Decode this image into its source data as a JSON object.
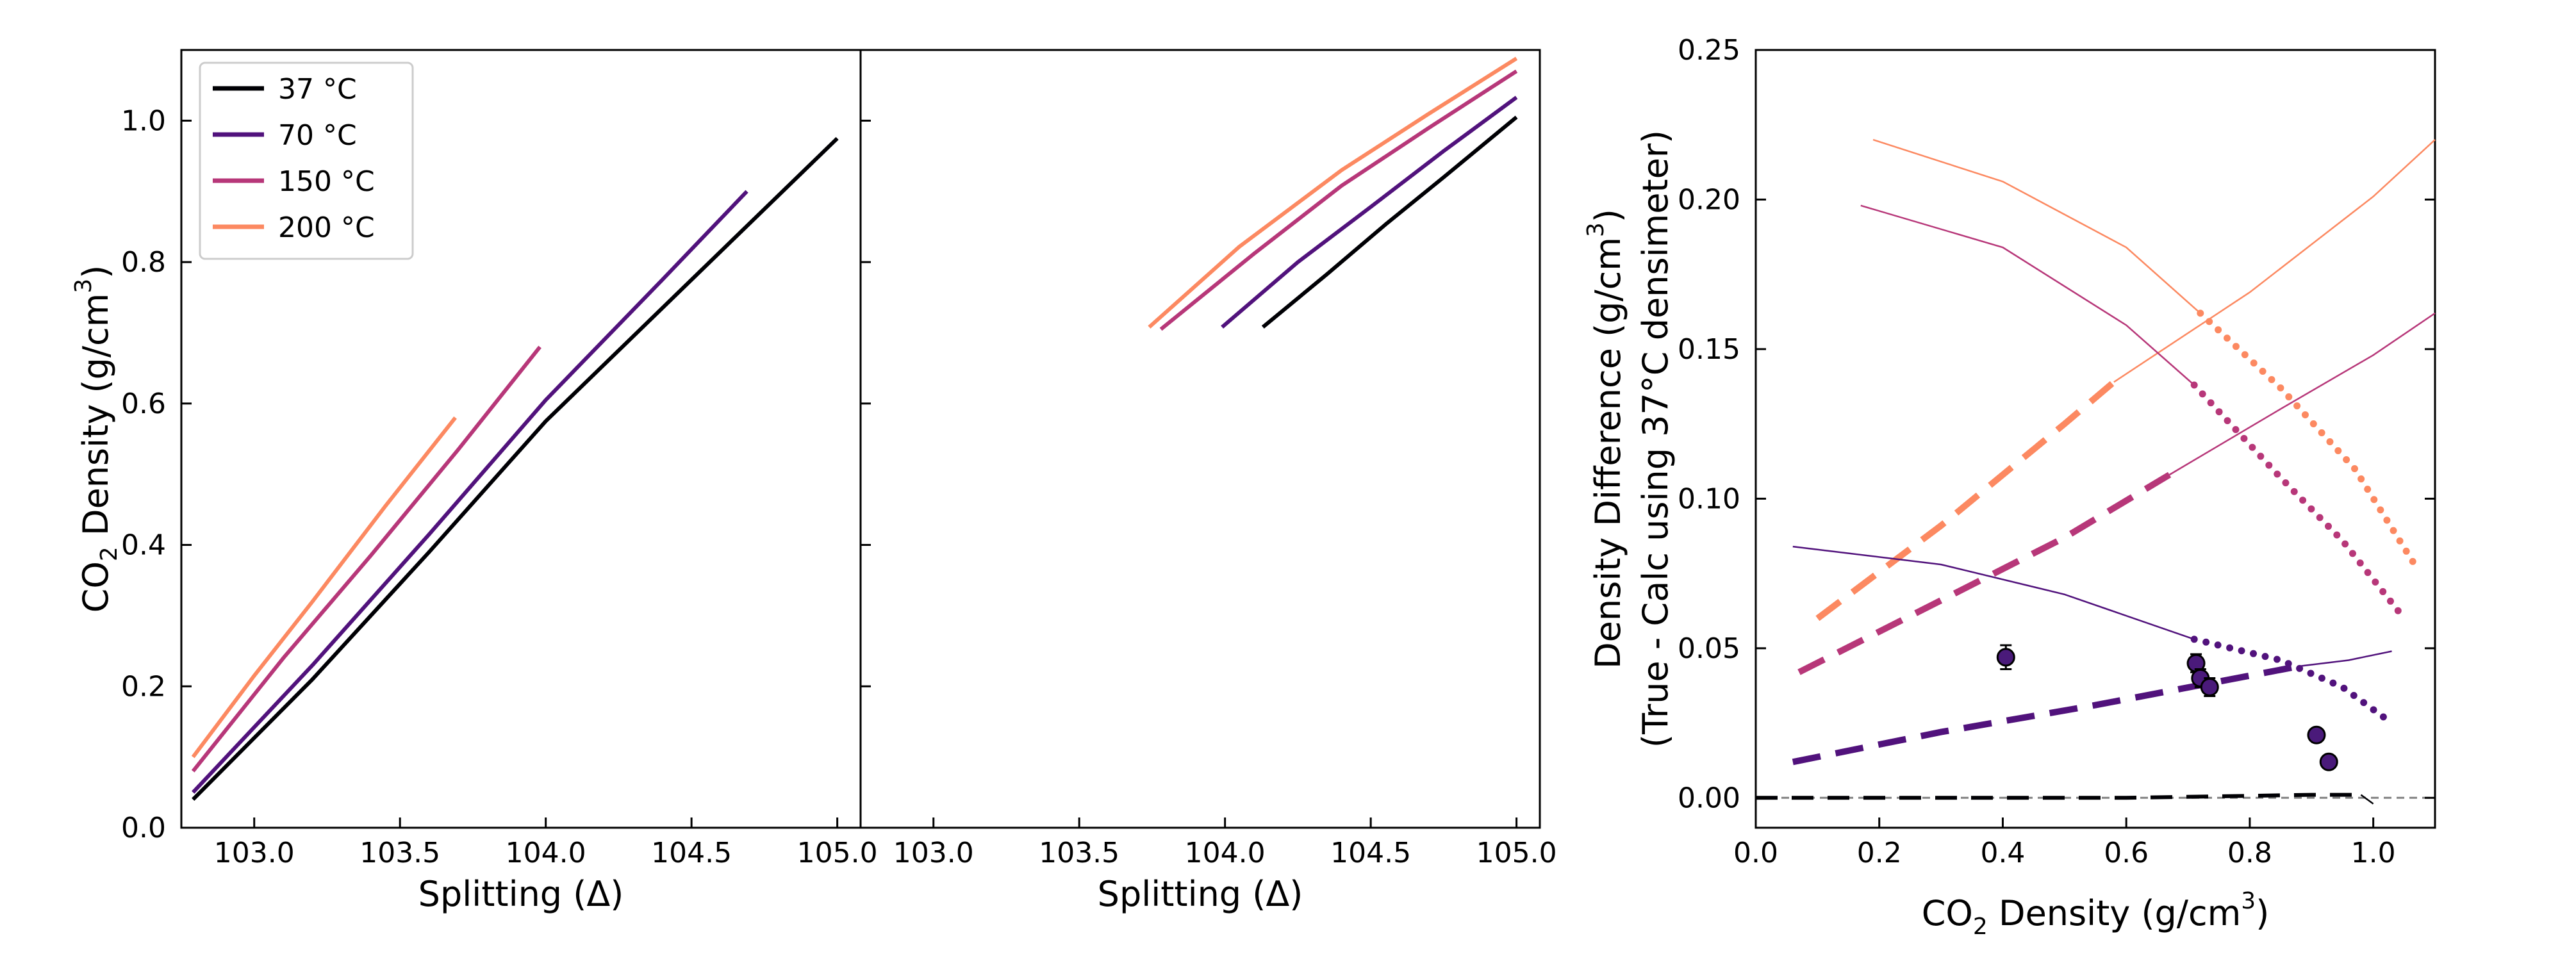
{
  "colors": {
    "37": "#000004",
    "70": "#51127c",
    "150": "#b73779",
    "200": "#fc8961",
    "marker": "#4a1a7a",
    "reference": "#808080"
  },
  "chart_data": [
    {
      "type": "line",
      "panel": "left",
      "xlabel_text": "Splitting (Δ)",
      "ylabel": {
        "pre": "CO",
        "sub": "2",
        "mid": " Density (g/cm",
        "sup": "3",
        "post": ")"
      },
      "xlim": [
        102.75,
        105.08
      ],
      "ylim": [
        0.0,
        1.1
      ],
      "x_ticks": [
        103.0,
        103.5,
        104.0,
        104.5,
        105.0
      ],
      "x_tick_labels": [
        "103.0",
        "103.5",
        "104.0",
        "104.5",
        "105.0"
      ],
      "y_ticks": [
        0.0,
        0.2,
        0.4,
        0.6,
        0.8,
        1.0
      ],
      "y_tick_labels": [
        "0.0",
        "0.2",
        "0.4",
        "0.6",
        "0.8",
        "1.0"
      ],
      "legend": {
        "placement": "top-left",
        "entries": [
          "37 °C",
          "70 °C",
          "150 °C",
          "200 °C"
        ]
      },
      "series": [
        {
          "name": "37 °C",
          "color_key": "37",
          "x": [
            102.79,
            103.2,
            103.6,
            104.0,
            104.5,
            105.0
          ],
          "y": [
            0.04,
            0.21,
            0.39,
            0.575,
            0.775,
            0.975
          ]
        },
        {
          "name": "70 °C",
          "color_key": "70",
          "x": [
            102.79,
            103.2,
            103.6,
            104.0,
            104.4,
            104.69
          ],
          "y": [
            0.05,
            0.23,
            0.415,
            0.605,
            0.775,
            0.9
          ]
        },
        {
          "name": "150 °C",
          "color_key": "150",
          "x": [
            102.79,
            103.1,
            103.4,
            103.7,
            103.98
          ],
          "y": [
            0.08,
            0.24,
            0.385,
            0.535,
            0.68
          ]
        },
        {
          "name": "200 °C",
          "color_key": "200",
          "x": [
            102.79,
            103.0,
            103.2,
            103.45,
            103.69
          ],
          "y": [
            0.1,
            0.215,
            0.32,
            0.455,
            0.58
          ]
        }
      ]
    },
    {
      "type": "line",
      "panel": "middle",
      "xlabel_text": "Splitting (Δ)",
      "xlim": [
        102.75,
        105.08
      ],
      "ylim": [
        0.0,
        1.1
      ],
      "x_ticks": [
        103.0,
        103.5,
        104.0,
        104.5,
        105.0
      ],
      "x_tick_labels": [
        "103.0",
        "103.5",
        "104.0",
        "104.5",
        "105.0"
      ],
      "y_ticks": [
        0.0,
        0.2,
        0.4,
        0.6,
        0.8,
        1.0
      ],
      "series": [
        {
          "color_key": "37",
          "x": [
            104.13,
            104.35,
            104.55,
            104.75,
            105.0
          ],
          "y": [
            0.708,
            0.783,
            0.853,
            0.92,
            1.005
          ]
        },
        {
          "color_key": "70",
          "x": [
            103.99,
            104.25,
            104.5,
            104.75,
            105.0
          ],
          "y": [
            0.708,
            0.8,
            0.878,
            0.957,
            1.033
          ]
        },
        {
          "color_key": "150",
          "x": [
            103.78,
            104.1,
            104.4,
            104.7,
            105.0
          ],
          "y": [
            0.705,
            0.812,
            0.908,
            0.99,
            1.07
          ]
        },
        {
          "color_key": "200",
          "x": [
            103.74,
            104.05,
            104.4,
            104.7,
            105.0
          ],
          "y": [
            0.708,
            0.822,
            0.93,
            1.01,
            1.088
          ]
        }
      ]
    },
    {
      "type": "line",
      "panel": "right",
      "xlabel": {
        "pre": "CO",
        "sub": "2",
        "mid": " Density (g/cm",
        "sup": "3",
        "post": ")"
      },
      "ylabel_line1": {
        "pre": "Density Difference (g/cm",
        "sup": "3",
        "post": ")"
      },
      "ylabel_line2": "(True - Calc using 37°C densimeter)",
      "xlim": [
        0.0,
        1.1
      ],
      "ylim": [
        -0.01,
        0.25
      ],
      "x_ticks": [
        0.0,
        0.2,
        0.4,
        0.6,
        0.8,
        1.0
      ],
      "x_tick_labels": [
        "0.0",
        "0.2",
        "0.4",
        "0.6",
        "0.8",
        "1.0"
      ],
      "y_ticks": [
        0.0,
        0.05,
        0.1,
        0.15,
        0.2,
        0.25
      ],
      "y_tick_labels": [
        "0.00",
        "0.05",
        "0.10",
        "0.15",
        "0.20",
        "0.25"
      ],
      "reference_line_y": 0.0,
      "series": [
        {
          "color_key": "200",
          "style": "thin",
          "x": [
            0.19,
            0.4,
            0.6,
            0.72
          ],
          "y": [
            0.22,
            0.206,
            0.184,
            0.162
          ]
        },
        {
          "color_key": "200",
          "style": "dotted",
          "x": [
            0.72,
            0.85,
            0.97,
            1.07
          ],
          "y": [
            0.162,
            0.137,
            0.11,
            0.077
          ]
        },
        {
          "color_key": "200",
          "style": "dashed",
          "x": [
            0.1,
            0.3,
            0.5,
            0.58
          ],
          "y": [
            0.06,
            0.091,
            0.125,
            0.139
          ]
        },
        {
          "color_key": "200",
          "style": "thin",
          "x": [
            0.58,
            0.8,
            1.0,
            1.1
          ],
          "y": [
            0.139,
            0.169,
            0.201,
            0.22
          ]
        },
        {
          "color_key": "150",
          "style": "thin",
          "x": [
            0.17,
            0.4,
            0.6,
            0.71
          ],
          "y": [
            0.198,
            0.184,
            0.158,
            0.138
          ]
        },
        {
          "color_key": "150",
          "style": "dotted",
          "x": [
            0.71,
            0.85,
            0.95,
            1.05
          ],
          "y": [
            0.138,
            0.107,
            0.086,
            0.06
          ]
        },
        {
          "color_key": "150",
          "style": "dashed",
          "x": [
            0.07,
            0.3,
            0.5,
            0.67
          ],
          "y": [
            0.042,
            0.066,
            0.087,
            0.108
          ]
        },
        {
          "color_key": "150",
          "style": "thin",
          "x": [
            0.67,
            0.85,
            1.0,
            1.1
          ],
          "y": [
            0.108,
            0.13,
            0.148,
            0.162
          ]
        },
        {
          "color_key": "70",
          "style": "thin",
          "x": [
            0.06,
            0.3,
            0.5,
            0.71
          ],
          "y": [
            0.084,
            0.078,
            0.068,
            0.053
          ]
        },
        {
          "color_key": "70",
          "style": "dotted",
          "x": [
            0.71,
            0.85,
            0.95,
            1.03
          ],
          "y": [
            0.053,
            0.046,
            0.037,
            0.025
          ]
        },
        {
          "color_key": "70",
          "style": "dashed",
          "x": [
            0.06,
            0.3,
            0.55,
            0.88
          ],
          "y": [
            0.012,
            0.022,
            0.031,
            0.044
          ]
        },
        {
          "color_key": "70",
          "style": "thin",
          "x": [
            0.88,
            0.96,
            1.03
          ],
          "y": [
            0.044,
            0.046,
            0.049
          ]
        },
        {
          "color_key": "37",
          "style": "dashed",
          "x": [
            0.0,
            0.3,
            0.6,
            0.9,
            0.98
          ],
          "y": [
            0.0,
            0.0,
            0.0,
            0.001,
            0.001
          ]
        },
        {
          "color_key": "37",
          "style": "thin",
          "x": [
            0.98,
            1.0
          ],
          "y": [
            0.001,
            -0.002
          ]
        }
      ],
      "points": {
        "color_key": "marker",
        "x": [
          0.405,
          0.713,
          0.72,
          0.735,
          0.908,
          0.928
        ],
        "y": [
          0.047,
          0.045,
          0.04,
          0.037,
          0.021,
          0.012
        ],
        "yerr": [
          0.004,
          0.003,
          0.003,
          0.003,
          0.002,
          0.002
        ]
      }
    }
  ]
}
